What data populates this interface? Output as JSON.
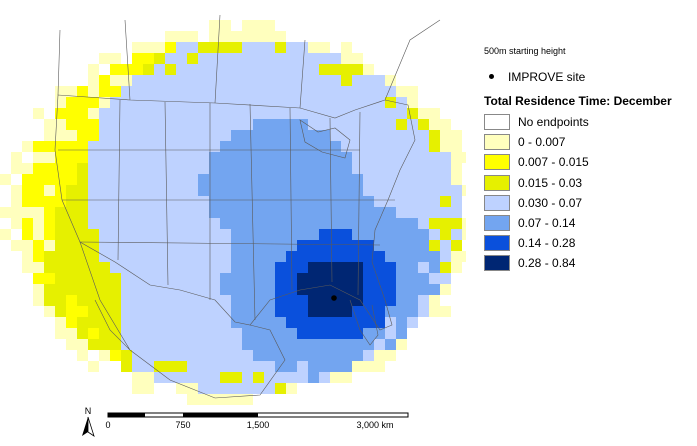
{
  "map": {
    "title": "Total Residence Time: December",
    "subtitle": "500m starting height",
    "site_label": "IMPROVE site",
    "legend_items": [
      {
        "label": "No endpoints",
        "color": "#ffffff"
      },
      {
        "label": "0 - 0.007",
        "color": "#ffffbe"
      },
      {
        "label": "0.007 - 0.015",
        "color": "#ffff00"
      },
      {
        "label": "0.015 - 0.03",
        "color": "#e6f000"
      },
      {
        "label": "0.030 - 0.07",
        "color": "#bed2ff"
      },
      {
        "label": "0.07 - 0.14",
        "color": "#73a5f0"
      },
      {
        "label": "0.14 - 0.28",
        "color": "#0a50dc"
      },
      {
        "label": "0.28 - 0.84",
        "color": "#002673"
      }
    ],
    "scale_bar": {
      "labels": [
        "0",
        "750",
        "1,500",
        "3,000 km"
      ],
      "north_label": "N"
    },
    "colors": {
      "land": "#ffffff",
      "boundary": "#5a5a5a",
      "site": "#000000"
    }
  }
}
